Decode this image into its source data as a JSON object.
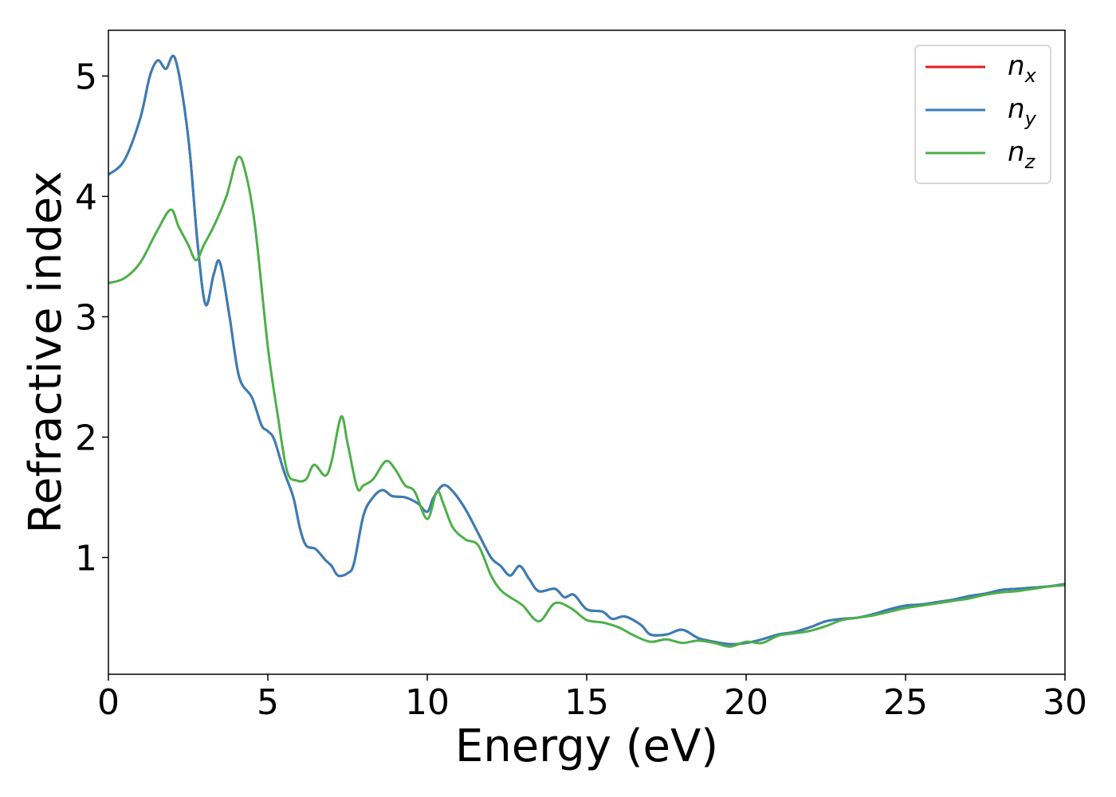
{
  "chart_data": {
    "type": "line",
    "title": "",
    "xlabel": "Energy (eV)",
    "ylabel": "Refractive index",
    "xlim": [
      0,
      30
    ],
    "ylim": [
      0.03,
      5.38
    ],
    "xticks": [
      0,
      5,
      10,
      15,
      20,
      25,
      30
    ],
    "yticks": [
      1,
      2,
      3,
      4,
      5
    ],
    "grid": false,
    "legend_position": "top-right",
    "series": [
      {
        "name": "n_x",
        "label_base": "n",
        "label_sub": "x",
        "color": "#e41a1c",
        "points": [
          [
            0,
            4.18
          ],
          [
            0.5,
            4.3
          ],
          [
            1.0,
            4.65
          ],
          [
            1.3,
            5.0
          ],
          [
            1.55,
            5.13
          ],
          [
            1.8,
            5.06
          ],
          [
            2.1,
            5.14
          ],
          [
            2.5,
            4.5
          ],
          [
            2.8,
            3.6
          ],
          [
            3.05,
            3.1
          ],
          [
            3.3,
            3.35
          ],
          [
            3.5,
            3.45
          ],
          [
            3.8,
            3.0
          ],
          [
            4.1,
            2.5
          ],
          [
            4.5,
            2.33
          ],
          [
            4.8,
            2.1
          ],
          [
            5.0,
            2.05
          ],
          [
            5.2,
            1.98
          ],
          [
            5.5,
            1.72
          ],
          [
            5.8,
            1.5
          ],
          [
            6.0,
            1.25
          ],
          [
            6.2,
            1.1
          ],
          [
            6.5,
            1.07
          ],
          [
            6.8,
            0.98
          ],
          [
            7.0,
            0.93
          ],
          [
            7.2,
            0.85
          ],
          [
            7.5,
            0.87
          ],
          [
            7.7,
            0.95
          ],
          [
            8.0,
            1.35
          ],
          [
            8.3,
            1.5
          ],
          [
            8.6,
            1.56
          ],
          [
            8.9,
            1.51
          ],
          [
            9.3,
            1.5
          ],
          [
            9.7,
            1.45
          ],
          [
            10.0,
            1.38
          ],
          [
            10.2,
            1.5
          ],
          [
            10.5,
            1.6
          ],
          [
            10.8,
            1.55
          ],
          [
            11.2,
            1.4
          ],
          [
            11.6,
            1.2
          ],
          [
            12.0,
            1.0
          ],
          [
            12.3,
            0.93
          ],
          [
            12.6,
            0.85
          ],
          [
            12.9,
            0.93
          ],
          [
            13.2,
            0.82
          ],
          [
            13.5,
            0.72
          ],
          [
            14.0,
            0.74
          ],
          [
            14.3,
            0.67
          ],
          [
            14.6,
            0.69
          ],
          [
            15.0,
            0.57
          ],
          [
            15.5,
            0.55
          ],
          [
            15.8,
            0.49
          ],
          [
            16.2,
            0.51
          ],
          [
            16.7,
            0.44
          ],
          [
            17.0,
            0.36
          ],
          [
            17.5,
            0.36
          ],
          [
            18.0,
            0.4
          ],
          [
            18.5,
            0.33
          ],
          [
            19.0,
            0.3
          ],
          [
            19.5,
            0.28
          ],
          [
            20.0,
            0.29
          ],
          [
            20.5,
            0.32
          ],
          [
            21.0,
            0.36
          ],
          [
            21.5,
            0.38
          ],
          [
            22.0,
            0.42
          ],
          [
            22.5,
            0.47
          ],
          [
            23.0,
            0.49
          ],
          [
            23.5,
            0.5
          ],
          [
            24.0,
            0.53
          ],
          [
            24.5,
            0.57
          ],
          [
            25.0,
            0.6
          ],
          [
            25.5,
            0.61
          ],
          [
            26.0,
            0.63
          ],
          [
            26.5,
            0.65
          ],
          [
            27.0,
            0.68
          ],
          [
            27.5,
            0.7
          ],
          [
            28.0,
            0.73
          ],
          [
            28.5,
            0.74
          ],
          [
            29.0,
            0.75
          ],
          [
            29.5,
            0.76
          ],
          [
            30.0,
            0.78
          ]
        ]
      },
      {
        "name": "n_y",
        "label_base": "n",
        "label_sub": "y",
        "color": "#377eb8",
        "points": [
          [
            0,
            4.18
          ],
          [
            0.5,
            4.3
          ],
          [
            1.0,
            4.65
          ],
          [
            1.3,
            5.0
          ],
          [
            1.55,
            5.13
          ],
          [
            1.8,
            5.06
          ],
          [
            2.1,
            5.14
          ],
          [
            2.5,
            4.5
          ],
          [
            2.8,
            3.6
          ],
          [
            3.05,
            3.1
          ],
          [
            3.3,
            3.35
          ],
          [
            3.5,
            3.45
          ],
          [
            3.8,
            3.0
          ],
          [
            4.1,
            2.5
          ],
          [
            4.5,
            2.33
          ],
          [
            4.8,
            2.1
          ],
          [
            5.0,
            2.05
          ],
          [
            5.2,
            1.98
          ],
          [
            5.5,
            1.72
          ],
          [
            5.8,
            1.5
          ],
          [
            6.0,
            1.25
          ],
          [
            6.2,
            1.1
          ],
          [
            6.5,
            1.07
          ],
          [
            6.8,
            0.98
          ],
          [
            7.0,
            0.93
          ],
          [
            7.2,
            0.85
          ],
          [
            7.5,
            0.87
          ],
          [
            7.7,
            0.95
          ],
          [
            8.0,
            1.35
          ],
          [
            8.3,
            1.5
          ],
          [
            8.6,
            1.56
          ],
          [
            8.9,
            1.51
          ],
          [
            9.3,
            1.5
          ],
          [
            9.7,
            1.45
          ],
          [
            10.0,
            1.38
          ],
          [
            10.2,
            1.5
          ],
          [
            10.5,
            1.6
          ],
          [
            10.8,
            1.55
          ],
          [
            11.2,
            1.4
          ],
          [
            11.6,
            1.2
          ],
          [
            12.0,
            1.0
          ],
          [
            12.3,
            0.93
          ],
          [
            12.6,
            0.85
          ],
          [
            12.9,
            0.93
          ],
          [
            13.2,
            0.82
          ],
          [
            13.5,
            0.72
          ],
          [
            14.0,
            0.74
          ],
          [
            14.3,
            0.67
          ],
          [
            14.6,
            0.69
          ],
          [
            15.0,
            0.57
          ],
          [
            15.5,
            0.55
          ],
          [
            15.8,
            0.49
          ],
          [
            16.2,
            0.51
          ],
          [
            16.7,
            0.44
          ],
          [
            17.0,
            0.36
          ],
          [
            17.5,
            0.36
          ],
          [
            18.0,
            0.4
          ],
          [
            18.5,
            0.33
          ],
          [
            19.0,
            0.3
          ],
          [
            19.5,
            0.28
          ],
          [
            20.0,
            0.29
          ],
          [
            20.5,
            0.32
          ],
          [
            21.0,
            0.36
          ],
          [
            21.5,
            0.38
          ],
          [
            22.0,
            0.42
          ],
          [
            22.5,
            0.47
          ],
          [
            23.0,
            0.49
          ],
          [
            23.5,
            0.5
          ],
          [
            24.0,
            0.53
          ],
          [
            24.5,
            0.57
          ],
          [
            25.0,
            0.6
          ],
          [
            25.5,
            0.61
          ],
          [
            26.0,
            0.63
          ],
          [
            26.5,
            0.65
          ],
          [
            27.0,
            0.68
          ],
          [
            27.5,
            0.7
          ],
          [
            28.0,
            0.73
          ],
          [
            28.5,
            0.74
          ],
          [
            29.0,
            0.75
          ],
          [
            29.5,
            0.76
          ],
          [
            30.0,
            0.78
          ]
        ]
      },
      {
        "name": "n_z",
        "label_base": "n",
        "label_sub": "z",
        "color": "#4daf4a",
        "points": [
          [
            0,
            3.28
          ],
          [
            0.5,
            3.32
          ],
          [
            1.0,
            3.45
          ],
          [
            1.5,
            3.7
          ],
          [
            1.95,
            3.89
          ],
          [
            2.2,
            3.75
          ],
          [
            2.5,
            3.6
          ],
          [
            2.75,
            3.47
          ],
          [
            3.0,
            3.6
          ],
          [
            3.3,
            3.75
          ],
          [
            3.7,
            4.0
          ],
          [
            4.05,
            4.32
          ],
          [
            4.3,
            4.2
          ],
          [
            4.6,
            3.75
          ],
          [
            5.0,
            2.75
          ],
          [
            5.3,
            2.2
          ],
          [
            5.6,
            1.72
          ],
          [
            5.9,
            1.64
          ],
          [
            6.2,
            1.65
          ],
          [
            6.45,
            1.77
          ],
          [
            6.8,
            1.68
          ],
          [
            7.0,
            1.8
          ],
          [
            7.3,
            2.17
          ],
          [
            7.5,
            1.95
          ],
          [
            7.8,
            1.58
          ],
          [
            8.0,
            1.6
          ],
          [
            8.3,
            1.65
          ],
          [
            8.7,
            1.8
          ],
          [
            9.0,
            1.73
          ],
          [
            9.3,
            1.6
          ],
          [
            9.6,
            1.55
          ],
          [
            10.0,
            1.32
          ],
          [
            10.3,
            1.55
          ],
          [
            10.5,
            1.45
          ],
          [
            10.8,
            1.25
          ],
          [
            11.2,
            1.15
          ],
          [
            11.6,
            1.1
          ],
          [
            12.0,
            0.85
          ],
          [
            12.3,
            0.73
          ],
          [
            12.6,
            0.67
          ],
          [
            13.0,
            0.6
          ],
          [
            13.5,
            0.47
          ],
          [
            14.0,
            0.62
          ],
          [
            14.5,
            0.58
          ],
          [
            15.0,
            0.48
          ],
          [
            15.5,
            0.46
          ],
          [
            16.0,
            0.42
          ],
          [
            16.5,
            0.35
          ],
          [
            17.0,
            0.3
          ],
          [
            17.5,
            0.32
          ],
          [
            18.0,
            0.29
          ],
          [
            18.5,
            0.31
          ],
          [
            19.0,
            0.29
          ],
          [
            19.5,
            0.26
          ],
          [
            20.0,
            0.3
          ],
          [
            20.5,
            0.29
          ],
          [
            21.0,
            0.35
          ],
          [
            21.5,
            0.37
          ],
          [
            22.0,
            0.39
          ],
          [
            22.5,
            0.43
          ],
          [
            23.0,
            0.48
          ],
          [
            23.5,
            0.5
          ],
          [
            24.0,
            0.52
          ],
          [
            24.5,
            0.55
          ],
          [
            25.0,
            0.58
          ],
          [
            25.5,
            0.6
          ],
          [
            26.0,
            0.62
          ],
          [
            26.5,
            0.64
          ],
          [
            27.0,
            0.66
          ],
          [
            27.5,
            0.69
          ],
          [
            28.0,
            0.71
          ],
          [
            28.5,
            0.72
          ],
          [
            29.0,
            0.74
          ],
          [
            29.5,
            0.76
          ],
          [
            30.0,
            0.77
          ]
        ]
      }
    ]
  }
}
